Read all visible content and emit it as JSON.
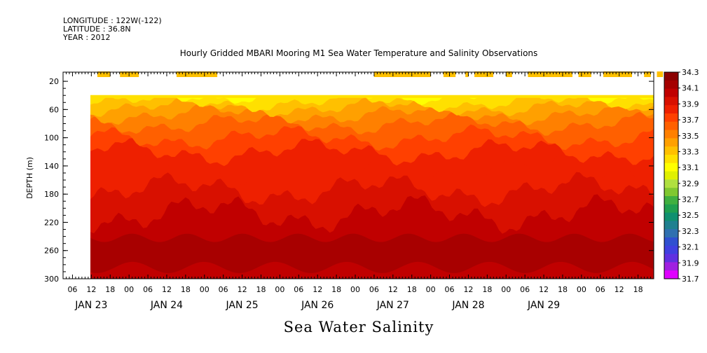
{
  "header": {
    "longitude": "LONGITUDE : 122W(-122)",
    "latitude": "LATITUDE : 36.8N",
    "year": "YEAR : 2012"
  },
  "chart_data": {
    "type": "heatmap",
    "title": "Hourly Gridded MBARI Mooring M1 Sea Water Temperature and Salinity Observations",
    "bottom_label": "Sea Water Salinity",
    "ylabel": "DEPTH (m)",
    "y_axis": {
      "ticks": [
        20,
        60,
        100,
        140,
        180,
        220,
        260,
        300
      ],
      "range": [
        7,
        300
      ],
      "inverted": true
    },
    "x_axis": {
      "hour_ticks": [
        "06",
        "12",
        "18",
        "00",
        "06",
        "12",
        "18",
        "00",
        "06",
        "12",
        "18",
        "00",
        "06",
        "12",
        "18",
        "00",
        "06",
        "12",
        "18",
        "00",
        "06",
        "12",
        "18",
        "00",
        "06",
        "12",
        "18",
        "00",
        "06",
        "12",
        "18",
        "00"
      ],
      "day_labels": [
        "JAN 23",
        "JAN 24",
        "JAN 25",
        "JAN 26",
        "JAN 27",
        "JAN 28",
        "JAN 29"
      ]
    },
    "colorbar": {
      "levels": [
        "34.3",
        "34.1",
        "33.9",
        "33.7",
        "33.5",
        "33.3",
        "33.1",
        "32.9",
        "32.7",
        "32.5",
        "32.3",
        "32.1",
        "31.9",
        "31.7"
      ],
      "colors": [
        "#8b0000",
        "#a50000",
        "#c00000",
        "#d81000",
        "#ee2000",
        "#ff4000",
        "#ff6000",
        "#ff8000",
        "#ffa000",
        "#ffc000",
        "#ffe000",
        "#ffff00",
        "#e0f000",
        "#b0e040",
        "#80c830",
        "#40b040",
        "#20a050",
        "#109070",
        "#208090",
        "#3070b0",
        "#3050d0",
        "#4040e0",
        "#6030e0",
        "#a020e0",
        "#e000ff"
      ]
    },
    "surface_values": {
      "depth_m": 10,
      "value": "33.3",
      "data_segments_days_from_jan23_00": [
        [
          0.58,
          0.75
        ],
        [
          0.88,
          1.13
        ],
        [
          1.63,
          2.17
        ],
        [
          4.25,
          5.0
        ],
        [
          5.17,
          5.33
        ],
        [
          5.46,
          5.5
        ],
        [
          5.58,
          5.83
        ],
        [
          6.0,
          6.08
        ],
        [
          6.29,
          6.88
        ],
        [
          6.96,
          7.13
        ],
        [
          7.29,
          7.67
        ],
        [
          7.83,
          7.92
        ],
        [
          8.0,
          8.08
        ]
      ]
    },
    "profiles": {
      "depth_m": [
        40,
        50,
        60,
        80,
        100,
        120,
        140,
        160,
        180,
        200,
        220,
        240,
        260,
        280,
        300
      ],
      "salinity": [
        33.2,
        33.3,
        33.45,
        33.6,
        33.7,
        33.8,
        33.88,
        33.95,
        34.02,
        34.08,
        34.13,
        34.18,
        34.22,
        34.2,
        34.15
      ]
    }
  }
}
